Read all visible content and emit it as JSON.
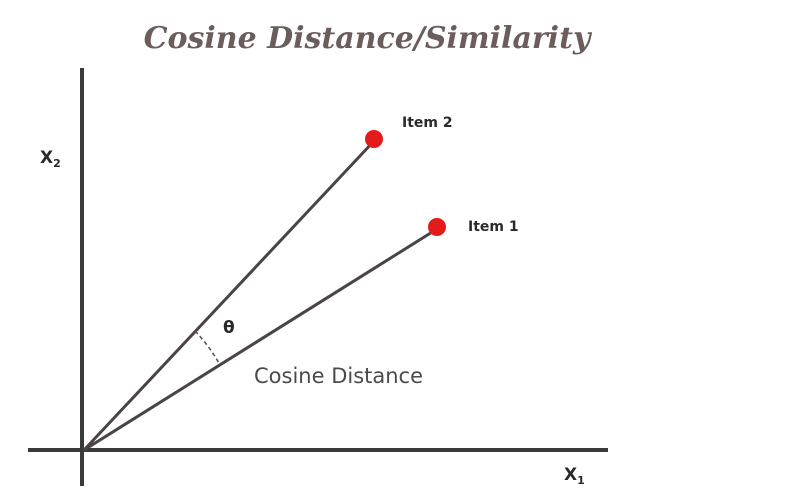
{
  "title": "Cosine Distance/Similarity",
  "axes": {
    "x_label": "X",
    "x_subscript": "1",
    "y_label": "X",
    "y_subscript": "2"
  },
  "items": [
    {
      "label": "Item 2",
      "color": "#e31b1b"
    },
    {
      "label": "Item 1",
      "color": "#e31b1b"
    }
  ],
  "angle": {
    "symbol": "θ"
  },
  "distance_label": "Cosine Distance",
  "colors": {
    "point": "#e31b1b",
    "title": "#6a5d5b",
    "lines": "#3a3a3a"
  }
}
